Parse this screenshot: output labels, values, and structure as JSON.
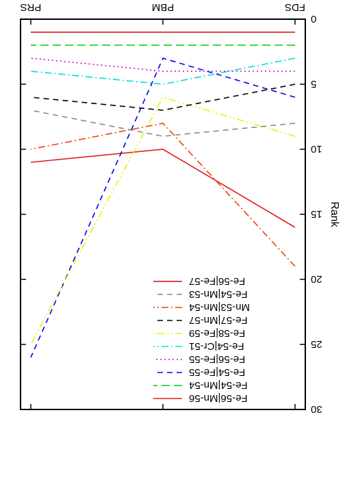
{
  "chart_data": {
    "type": "line",
    "orientation": "rotated-180",
    "title": "",
    "xlabel": "",
    "ylabel": "Rank",
    "categories": [
      "FDS",
      "PBM",
      "PRS"
    ],
    "ylim": [
      0,
      30
    ],
    "y_ticks": [
      0,
      5,
      10,
      15,
      20,
      25,
      30
    ],
    "grid": false,
    "legend_position": "top-right",
    "series": [
      {
        "name": "Fe-56|Mn-56",
        "values": [
          16,
          10,
          11
        ],
        "color": "#e41a1c",
        "dash": "solid"
      },
      {
        "name": "Fe-54|Mn-54",
        "values": [
          2,
          2,
          2
        ],
        "color": "#00cc00",
        "dash": "long-dash"
      },
      {
        "name": "Fe-54|Fe-55",
        "values": [
          6,
          3,
          26
        ],
        "color": "#0000ee",
        "dash": "dash"
      },
      {
        "name": "Fe-56|Fe-55",
        "values": [
          4,
          4,
          3
        ],
        "color": "#cc00cc",
        "dash": "dot"
      },
      {
        "name": "Fe-54|Cr-51",
        "values": [
          3,
          5,
          4
        ],
        "color": "#00dddd",
        "dash": "dash-dot"
      },
      {
        "name": "Fe-58|Fe-59",
        "values": [
          9,
          6,
          25
        ],
        "color": "#eeee00",
        "dash": "dash-dot-dot"
      },
      {
        "name": "Fe-57|Mn-57",
        "values": [
          5,
          7,
          6
        ],
        "color": "#000000",
        "dash": "dash"
      },
      {
        "name": "Mn-53|Mn-54",
        "values": [
          19,
          8,
          10
        ],
        "color": "#ee4400",
        "dash": "dash-dot"
      },
      {
        "name": "Fe-54|Mn-53",
        "values": [
          8,
          9,
          7
        ],
        "color": "#888888",
        "dash": "dash"
      },
      {
        "name": "Fe-56|Fe-57",
        "values": [
          1,
          1,
          1
        ],
        "color": "#dd0000",
        "dash": "solid"
      }
    ]
  }
}
